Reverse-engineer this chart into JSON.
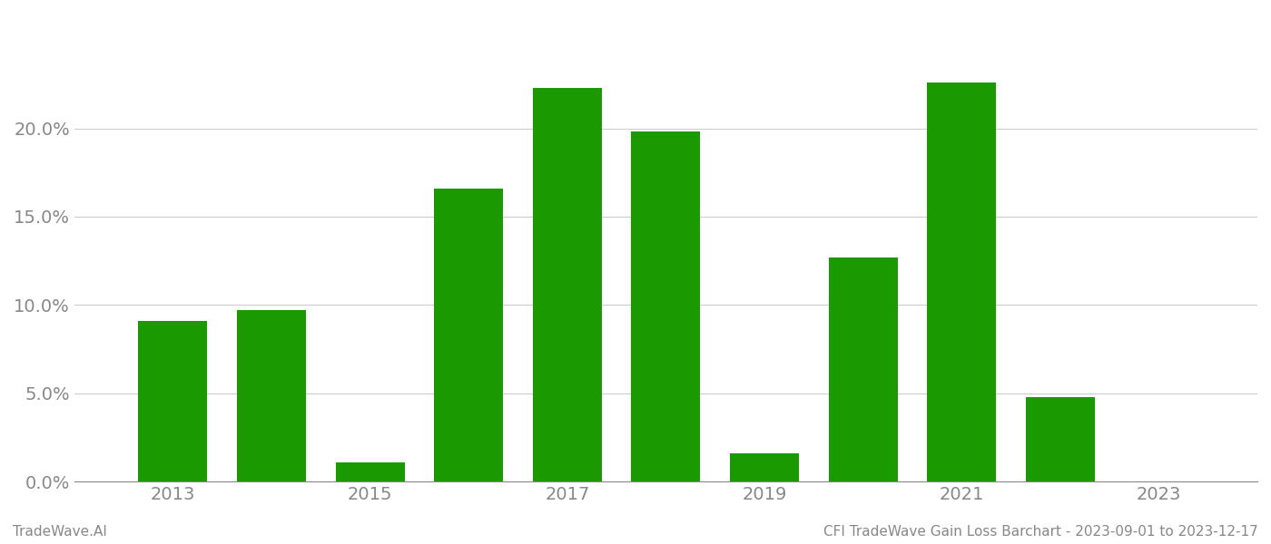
{
  "years": [
    2013,
    2014,
    2015,
    2016,
    2017,
    2018,
    2019,
    2020,
    2021,
    2022,
    2023
  ],
  "values": [
    0.091,
    0.097,
    0.011,
    0.166,
    0.223,
    0.198,
    0.016,
    0.127,
    0.226,
    0.048,
    0.0
  ],
  "bar_color": "#1a9a00",
  "background_color": "#ffffff",
  "grid_color": "#cccccc",
  "axis_color": "#888888",
  "tick_label_color": "#888888",
  "ylabel_ticks": [
    0.0,
    0.05,
    0.1,
    0.15,
    0.2
  ],
  "ylim": [
    0,
    0.265
  ],
  "xtick_positions": [
    2013,
    2015,
    2017,
    2019,
    2021,
    2023
  ],
  "xtick_labels": [
    "2013",
    "2015",
    "2017",
    "2019",
    "2021",
    "2023"
  ],
  "footer_left": "TradeWave.AI",
  "footer_right": "CFI TradeWave Gain Loss Barchart - 2023-09-01 to 2023-12-17",
  "footer_color": "#888888",
  "footer_fontsize": 11,
  "tick_fontsize": 14,
  "bar_width": 0.7
}
